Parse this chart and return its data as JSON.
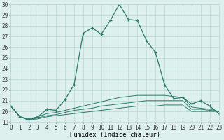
{
  "xlabel": "Humidex (Indice chaleur)",
  "x": [
    0,
    1,
    2,
    3,
    4,
    5,
    6,
    7,
    8,
    9,
    10,
    11,
    12,
    13,
    14,
    15,
    16,
    17,
    18,
    19,
    20,
    21,
    22,
    23
  ],
  "humidex_line": [
    20.5,
    19.5,
    19.2,
    19.5,
    20.2,
    20.1,
    21.1,
    22.5,
    27.3,
    27.8,
    27.2,
    28.5,
    30.0,
    28.6,
    28.5,
    26.6,
    25.5,
    22.5,
    21.2,
    21.3,
    20.7,
    21.0,
    20.5,
    19.8
  ],
  "flat_line1": [
    20.5,
    19.5,
    19.2,
    19.3,
    19.5,
    19.6,
    19.7,
    19.8,
    19.9,
    20.0,
    20.1,
    20.2,
    20.3,
    20.4,
    20.5,
    20.5,
    20.5,
    20.6,
    20.6,
    20.6,
    20.0,
    20.0,
    20.0,
    20.0
  ],
  "flat_line2": [
    20.5,
    19.5,
    19.2,
    19.4,
    19.6,
    19.7,
    19.9,
    20.1,
    20.2,
    20.3,
    20.5,
    20.6,
    20.7,
    20.8,
    20.9,
    21.0,
    21.0,
    21.0,
    21.0,
    21.0,
    20.2,
    20.2,
    20.1,
    20.0
  ],
  "flat_line3": [
    20.5,
    19.5,
    19.3,
    19.5,
    19.8,
    19.9,
    20.1,
    20.3,
    20.5,
    20.7,
    20.9,
    21.1,
    21.3,
    21.4,
    21.5,
    21.5,
    21.5,
    21.5,
    21.4,
    21.3,
    20.4,
    20.3,
    20.2,
    20.0
  ],
  "ylim": [
    19,
    30
  ],
  "yticks": [
    19,
    20,
    21,
    22,
    23,
    24,
    25,
    26,
    27,
    28,
    29,
    30
  ],
  "xticks": [
    0,
    1,
    2,
    3,
    4,
    5,
    6,
    7,
    8,
    9,
    10,
    11,
    12,
    13,
    14,
    15,
    16,
    17,
    18,
    19,
    20,
    21,
    22,
    23
  ],
  "line_color": "#2a7a6a",
  "bg_color": "#ddf0ee",
  "grid_color": "#b8d8d5",
  "fig_bg": "#ddf0ee",
  "label_fontsize": 6.5,
  "tick_fontsize": 5.5
}
